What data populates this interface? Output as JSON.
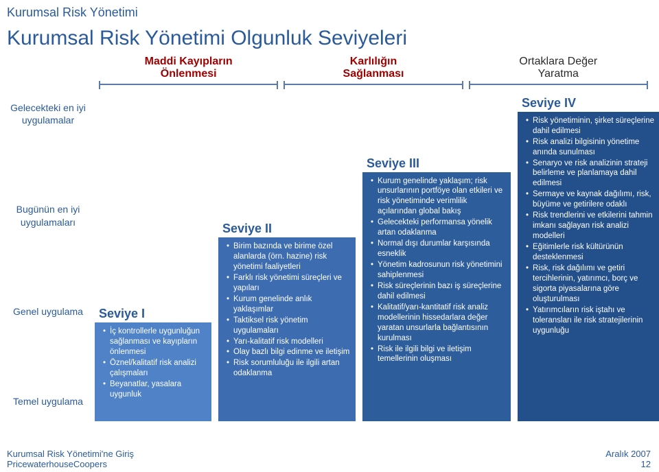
{
  "page_title_small": "Kurumsal Risk Yönetimi",
  "page_title": "Kurumsal Risk Yönetimi Olgunluk Seviyeleri",
  "bands": {
    "b1_line1": "Maddi Kayıpların",
    "b1_line2": "Önlenmesi",
    "b2_line1": "Karlılığın",
    "b2_line2": "Sağlanması",
    "b3_line1": "Ortaklara Değer",
    "b3_line2": "Yaratma"
  },
  "sidebar": {
    "l1": "Gelecekteki en iyi uygulamalar",
    "l2": "Bugünün en iyi uygulamaları",
    "l3": "Genel uygulama",
    "l4": "Temel uygulama"
  },
  "levels": {
    "s1": {
      "title": "Seviye I",
      "items": [
        "İç kontrollerle uygunluğun sağlanması ve kayıpların önlenmesi",
        "Öznel/kalitatif risk analizi çalışmaları",
        "Beyanatlar, yasalara uygunluk"
      ]
    },
    "s2": {
      "title": "Seviye II",
      "items": [
        "Birim bazında ve birime özel alanlarda (örn. hazine) risk yönetimi faaliyetleri",
        "Farklı risk yönetimi süreçleri ve yapıları",
        "Kurum genelinde anlık yaklaşımlar",
        "Taktiksel risk yönetim uygulamaları",
        "Yarı-kalitatif risk modelleri",
        "Olay bazlı bilgi edinme ve iletişim",
        "Risk sorumluluğu ile ilgili artan odaklanma"
      ]
    },
    "s3": {
      "title": "Seviye III",
      "items": [
        "Kurum genelinde yaklaşım; risk unsurlarının portföye olan etkileri ve risk yönetiminde verimlilik açılarından global bakış",
        "Gelecekteki performansa yönelik artan odaklanma",
        "Normal dışı durumlar karşısında esneklik",
        "Yönetim kadrosunun risk yönetimini sahiplenmesi",
        "Risk süreçlerinin bazı iş süreçlerine dahil edilmesi",
        "Kalitatif/yarı-kantitatif risk analiz modellerinin hissedarlara değer yaratan unsurlarla bağlantısının kurulması",
        "Risk ile ilgili bilgi ve iletişim temellerinin oluşması"
      ]
    },
    "s4": {
      "title": "Seviye IV",
      "items": [
        "Risk yönetiminin, şirket süreçlerine dahil edilmesi",
        "Risk analizi bilgisinin yönetime anında sunulması",
        "Senaryo ve risk analizinin strateji belirleme ve planlamaya dahil edilmesi",
        "Sermaye ve kaynak dağılımı, risk, büyüme ve getirilere odaklı",
        "Risk trendlerini ve etkilerini tahmin imkanı sağlayan risk analizi modelleri",
        "Eğitimlerle risk kültürünün desteklenmesi",
        "Risk, risk dağılımı ve getiri tercihlerinin, yatırımcı, borç ve sigorta piyasalarına göre oluşturulması",
        "Yatırımcıların risk iştahı ve toleransları ile risk stratejilerinin uygunluğu"
      ]
    }
  },
  "footer": {
    "left1": "Kurumsal Risk Yönetimi'ne Giriş",
    "left2": "PricewaterhouseCoopers",
    "right1": "Aralık 2007",
    "right2": "12"
  },
  "colors": {
    "accent": "#2a5a9a",
    "bad": "#a00000",
    "lvl1": "#4f82c6",
    "lvl2": "#3d6db0",
    "lvl3": "#2e5d9c",
    "lvl4": "#234f8b"
  }
}
